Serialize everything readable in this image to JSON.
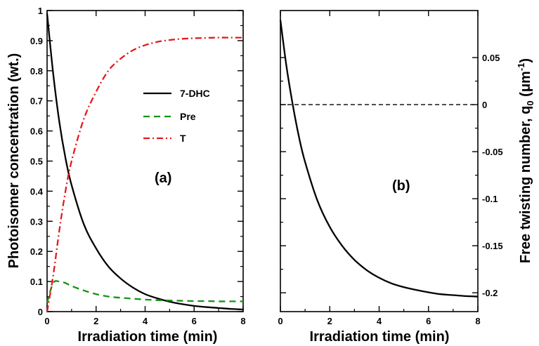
{
  "chart_data": [
    {
      "panel": "(a)",
      "type": "line",
      "xlabel": "Irradiation time (min)",
      "ylabel": "Photoisomer concentration (wt.)",
      "xlim": [
        0,
        8
      ],
      "ylim": [
        0,
        1
      ],
      "xticks": [
        0,
        2,
        4,
        6,
        8
      ],
      "yticks": [
        0,
        0.1,
        0.2,
        0.3,
        0.4,
        0.5,
        0.6,
        0.7,
        0.8,
        0.9,
        1
      ],
      "ytick_labels": [
        "0",
        "0.1",
        "0.2",
        "0.3",
        "0.4",
        "0.5",
        "0.6",
        "0.7",
        "0.8",
        "0.9",
        "1"
      ],
      "grid": false,
      "legend": "upper-middle",
      "x": [
        0,
        0.25,
        0.5,
        0.75,
        1,
        1.5,
        2,
        2.5,
        3,
        3.5,
        4,
        4.5,
        5,
        5.5,
        6,
        6.5,
        7,
        7.5,
        8
      ],
      "series": [
        {
          "name": "7-DHC",
          "color": "#000000",
          "style": "solid",
          "values": [
            0.99,
            0.79,
            0.63,
            0.51,
            0.42,
            0.29,
            0.21,
            0.15,
            0.11,
            0.08,
            0.058,
            0.044,
            0.033,
            0.025,
            0.019,
            0.015,
            0.012,
            0.009,
            0.007
          ]
        },
        {
          "name": "Pre",
          "color": "#169216",
          "style": "dashed",
          "values": [
            0.03,
            0.095,
            0.1,
            0.095,
            0.085,
            0.07,
            0.058,
            0.05,
            0.046,
            0.043,
            0.04,
            0.038,
            0.037,
            0.036,
            0.035,
            0.035,
            0.034,
            0.034,
            0.034
          ]
        },
        {
          "name": "T",
          "color": "#e41a1c",
          "style": "dash-dot",
          "values": [
            0.0,
            0.12,
            0.27,
            0.4,
            0.5,
            0.64,
            0.73,
            0.8,
            0.84,
            0.868,
            0.885,
            0.896,
            0.902,
            0.906,
            0.908,
            0.909,
            0.91,
            0.91,
            0.91
          ]
        }
      ]
    },
    {
      "panel": "(b)",
      "type": "line",
      "xlabel": "Irradiation time (min)",
      "ylabel_main": "Free twisting number, q",
      "ylabel_sub": "0",
      "ylabel_unit_open": " (μm",
      "ylabel_unit_exp": "-1",
      "ylabel_unit_close": ")",
      "xlim": [
        0,
        8
      ],
      "ylim": [
        -0.22,
        0.1
      ],
      "xticks": [
        0,
        2,
        4,
        6,
        8
      ],
      "yticks": [
        0.05,
        0,
        -0.05,
        -0.1,
        -0.15,
        -0.2
      ],
      "ytick_labels": [
        "0.05",
        "0",
        "-0.05",
        "-0.1",
        "-0.15",
        "-0.2"
      ],
      "grid": false,
      "reference_line": {
        "y": 0,
        "style": "dashed",
        "color": "#000000"
      },
      "x": [
        0,
        0.25,
        0.5,
        0.75,
        1,
        1.5,
        2,
        2.5,
        3,
        3.5,
        4,
        4.5,
        5,
        5.5,
        6,
        6.5,
        7,
        7.5,
        8
      ],
      "series": [
        {
          "color": "#000000",
          "style": "solid",
          "values": [
            0.09,
            0.04,
            0.0,
            -0.034,
            -0.061,
            -0.102,
            -0.13,
            -0.15,
            -0.165,
            -0.176,
            -0.184,
            -0.19,
            -0.194,
            -0.197,
            -0.1995,
            -0.2015,
            -0.2025,
            -0.2035,
            -0.204
          ]
        }
      ]
    }
  ],
  "panel_labels": {
    "a": "(a)",
    "b": "(b)"
  }
}
